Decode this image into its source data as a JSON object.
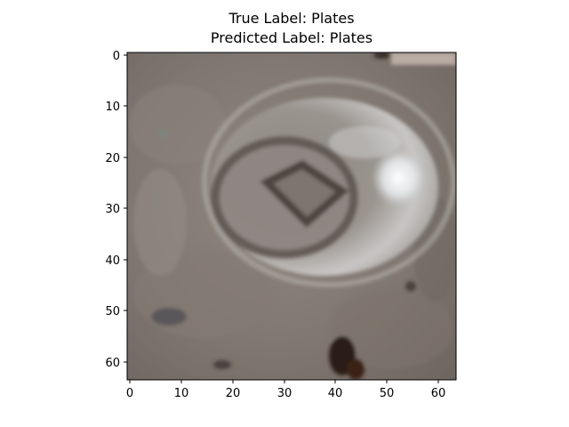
{
  "title": {
    "true_label_line": "True Label: Plates",
    "predicted_label_line": "Predicted Label: Plates"
  },
  "image": {
    "description_pixels": "64x64",
    "x_ticks": [
      "0",
      "10",
      "20",
      "30",
      "40",
      "50",
      "60"
    ],
    "y_ticks": [
      "0",
      "10",
      "20",
      "30",
      "40",
      "50",
      "60"
    ]
  }
}
